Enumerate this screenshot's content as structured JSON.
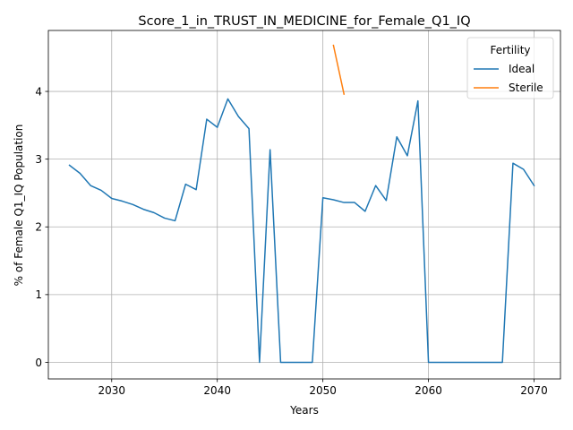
{
  "chart_data": {
    "type": "line",
    "title": "Score_1_in_TRUST_IN_MEDICINE_for_Female_Q1_IQ",
    "xlabel": "Years",
    "ylabel": "% of Female Q1_IQ Population",
    "xlim": [
      2024,
      2072.5
    ],
    "ylim": [
      -0.245,
      4.9
    ],
    "xticks": [
      2030,
      2040,
      2050,
      2060,
      2070
    ],
    "yticks": [
      0,
      1,
      2,
      3,
      4
    ],
    "grid": true,
    "legend": {
      "title": "Fertility",
      "placement": "top-right"
    },
    "series": [
      {
        "name": "Ideal",
        "color": "#1f77b4",
        "x": [
          2026,
          2027,
          2028,
          2029,
          2030,
          2031,
          2032,
          2033,
          2034,
          2035,
          2036,
          2037,
          2038,
          2039,
          2040,
          2041,
          2042,
          2043,
          2044,
          2045,
          2046,
          2047,
          2048,
          2049,
          2050,
          2051,
          2052,
          2053,
          2054,
          2055,
          2056,
          2057,
          2058,
          2059,
          2060,
          2061,
          2062,
          2063,
          2064,
          2065,
          2066,
          2067,
          2068,
          2069,
          2070
        ],
        "y": [
          2.91,
          2.79,
          2.61,
          2.54,
          2.42,
          2.38,
          2.33,
          2.26,
          2.21,
          2.13,
          2.09,
          2.63,
          2.55,
          3.59,
          3.47,
          3.89,
          3.63,
          3.45,
          0.0,
          3.14,
          0.0,
          0.0,
          0.0,
          0.0,
          2.43,
          2.4,
          2.36,
          2.36,
          2.23,
          2.61,
          2.39,
          3.33,
          3.05,
          3.86,
          0.0,
          0.0,
          0.0,
          0.0,
          0.0,
          0.0,
          0.0,
          0.0,
          2.94,
          2.85,
          2.61
        ]
      },
      {
        "name": "Sterile",
        "color": "#ff7f0e",
        "x": [
          2051,
          2052
        ],
        "y": [
          4.68,
          3.96
        ]
      }
    ]
  }
}
